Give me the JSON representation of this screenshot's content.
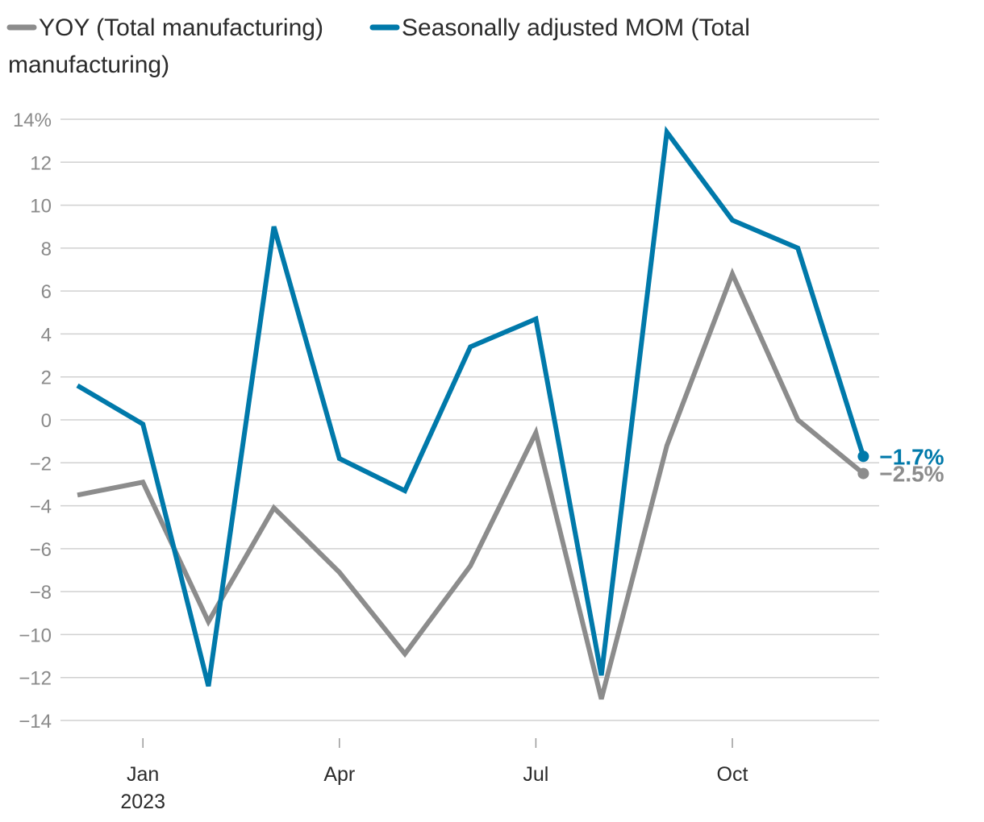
{
  "chart_data": {
    "type": "line",
    "title": "",
    "xlabel": "",
    "ylabel": "",
    "ylim": [
      -14,
      14
    ],
    "y_ticks": [
      14,
      12,
      10,
      8,
      6,
      4,
      2,
      0,
      -2,
      -4,
      -6,
      -8,
      -10,
      -12,
      -14
    ],
    "y_tick_labels": [
      "14%",
      "12",
      "10",
      "8",
      "6",
      "4",
      "2",
      "0",
      "−2",
      "−4",
      "−6",
      "−8",
      "−10",
      "−12",
      "−14"
    ],
    "x": [
      "2022-12",
      "2023-01",
      "2023-02",
      "2023-03",
      "2023-04",
      "2023-05",
      "2023-06",
      "2023-07",
      "2023-08",
      "2023-09",
      "2023-10",
      "2023-11",
      "2023-12"
    ],
    "x_ticks": [
      {
        "index": 1,
        "label": "Jan",
        "sublabel": "2023"
      },
      {
        "index": 4,
        "label": "Apr",
        "sublabel": ""
      },
      {
        "index": 7,
        "label": "Jul",
        "sublabel": ""
      },
      {
        "index": 10,
        "label": "Oct",
        "sublabel": ""
      }
    ],
    "series": [
      {
        "name": "YOY (Total manufacturing)",
        "color": "#8c8c8c",
        "values": [
          -3.5,
          -2.9,
          -9.4,
          -4.1,
          -7.1,
          -10.9,
          -6.8,
          -0.6,
          -13.0,
          -1.2,
          6.8,
          0.0,
          -2.5
        ],
        "end_label": "−2.5%"
      },
      {
        "name": "Seasonally adjusted MOM (Total manufacturing)",
        "color": "#0079aa",
        "values": [
          1.6,
          -0.2,
          -12.4,
          9.0,
          -1.8,
          -3.3,
          3.4,
          4.7,
          -11.9,
          13.4,
          9.3,
          8.0,
          -1.7
        ],
        "end_label": "−1.7%"
      }
    ],
    "legend": {
      "placement": "top-left",
      "entries": [
        "YOY (Total manufacturing)",
        "Seasonally adjusted MOM (Total",
        "manufacturing)"
      ]
    },
    "grid": true
  }
}
